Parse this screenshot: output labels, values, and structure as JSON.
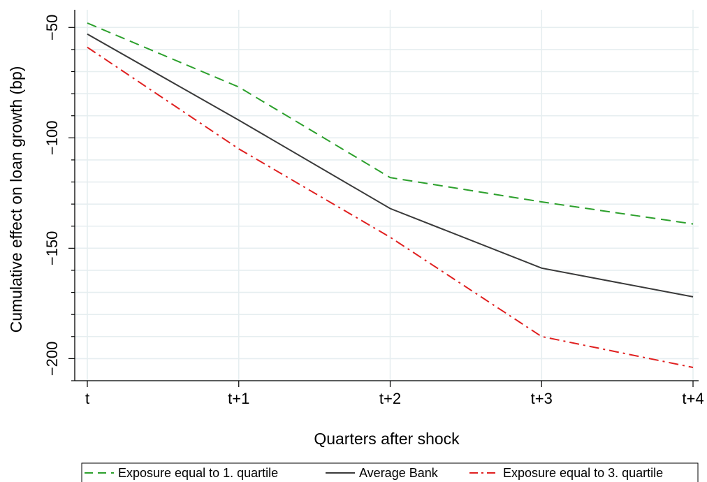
{
  "chart_data": {
    "type": "line",
    "title": "",
    "xlabel": "Quarters after shock",
    "ylabel": "Cumulative effect on loan growth (bp)",
    "categories": [
      "t",
      "t+1",
      "t+2",
      "t+3",
      "t+4"
    ],
    "yticks": [
      -50,
      -100,
      -150,
      -200
    ],
    "ylim": [
      -210,
      -42
    ],
    "grid": true,
    "legend_position": "bottom",
    "series": [
      {
        "name": "Exposure equal to 1. quartile",
        "values": [
          -48,
          -77,
          -118,
          -129,
          -139
        ],
        "color": "#2ca02c",
        "style": "dashed"
      },
      {
        "name": "Average Bank",
        "values": [
          -53,
          -92,
          -132,
          -159,
          -172
        ],
        "color": "#3a3a3a",
        "style": "solid"
      },
      {
        "name": "Exposure equal to 3. quartile",
        "values": [
          -59,
          -105,
          -145,
          -190,
          -204
        ],
        "color": "#e02020",
        "style": "dashdot"
      }
    ]
  }
}
